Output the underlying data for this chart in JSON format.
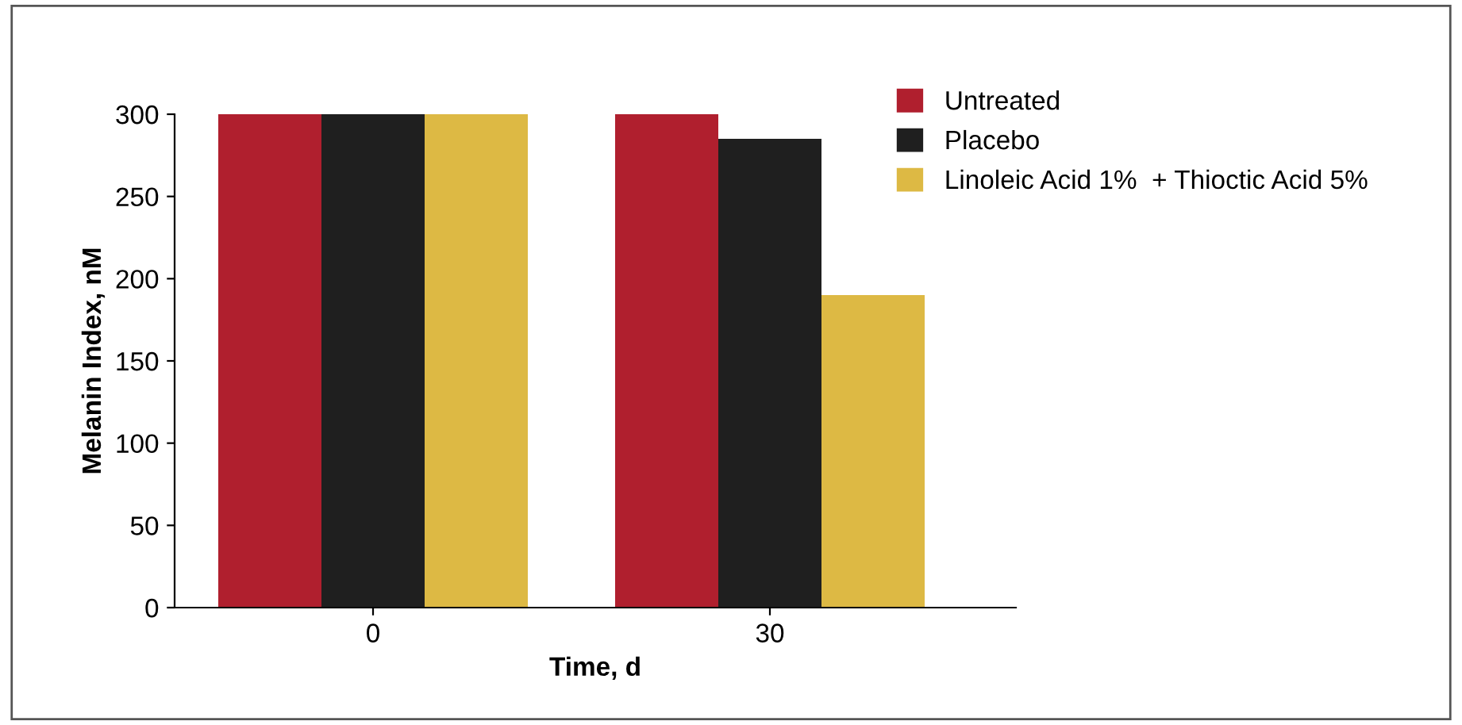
{
  "chart_data": {
    "type": "bar",
    "xlabel": "Time, d",
    "ylabel": "Melanin Index, nM",
    "categories": [
      "0",
      "30"
    ],
    "series": [
      {
        "name": "Untreated",
        "color": "#b01f2e",
        "values": [
          300,
          300
        ]
      },
      {
        "name": "Placebo",
        "color": "#1f1f1f",
        "values": [
          300,
          285
        ]
      },
      {
        "name": "Linoleic Acid 1%  + Thioctic Acid 5%",
        "color": "#ddb944",
        "values": [
          300,
          190
        ]
      }
    ],
    "ylim": [
      0,
      300
    ],
    "yticks": [
      0,
      50,
      100,
      150,
      200,
      250,
      300
    ],
    "grid": false,
    "legend": "top right"
  }
}
